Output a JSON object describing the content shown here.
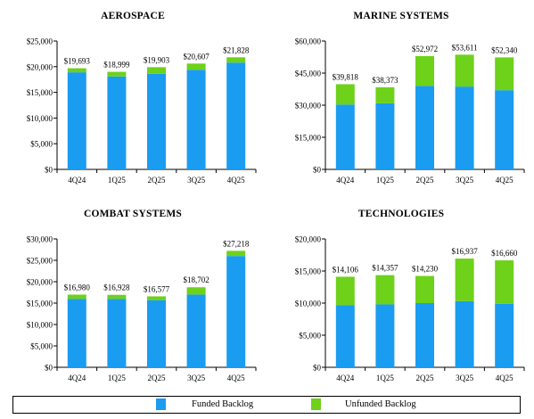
{
  "colors": {
    "funded": "#1a9cf0",
    "unfunded": "#6ed11a",
    "axis": "#000000"
  },
  "legend": {
    "funded_label": "Funded Backlog",
    "unfunded_label": "Unfunded Backlog"
  },
  "chart_data": [
    {
      "type": "bar",
      "stacked": true,
      "title": "AEROSPACE",
      "categories": [
        "4Q24",
        "1Q25",
        "2Q25",
        "3Q25",
        "4Q25"
      ],
      "ylim": [
        0,
        25000
      ],
      "yticks": [
        "$0",
        "$5,000",
        "$10,000",
        "$15,000",
        "$20,000",
        "$25,000"
      ],
      "ytick_values": [
        0,
        5000,
        10000,
        15000,
        20000,
        25000
      ],
      "series": [
        {
          "name": "Funded Backlog",
          "values": [
            18900,
            18100,
            18600,
            19400,
            20800
          ]
        },
        {
          "name": "Unfunded Backlog",
          "values": [
            793,
            899,
            1303,
            1207,
            1028
          ]
        }
      ],
      "totals": [
        19693,
        18999,
        19903,
        20607,
        21828
      ],
      "total_labels": [
        "$19,693",
        "$18,999",
        "$19,903",
        "$20,607",
        "$21,828"
      ]
    },
    {
      "type": "bar",
      "stacked": true,
      "title": "MARINE SYSTEMS",
      "categories": [
        "4Q24",
        "1Q25",
        "2Q25",
        "3Q25",
        "4Q25"
      ],
      "ylim": [
        0,
        60000
      ],
      "yticks": [
        "$0",
        "$15,000",
        "$30,000",
        "$45,000",
        "$60,000"
      ],
      "ytick_values": [
        0,
        15000,
        30000,
        45000,
        60000
      ],
      "series": [
        {
          "name": "Funded Backlog",
          "values": [
            30300,
            30900,
            39000,
            38700,
            37000
          ]
        },
        {
          "name": "Unfunded Backlog",
          "values": [
            9518,
            7473,
            13972,
            14911,
            15340
          ]
        }
      ],
      "totals": [
        39818,
        38373,
        52972,
        53611,
        52340
      ],
      "total_labels": [
        "$39,818",
        "$38,373",
        "$52,972",
        "$53,611",
        "$52,340"
      ]
    },
    {
      "type": "bar",
      "stacked": true,
      "title": "COMBAT SYSTEMS",
      "categories": [
        "4Q24",
        "1Q25",
        "2Q25",
        "3Q25",
        "4Q25"
      ],
      "ylim": [
        0,
        30000
      ],
      "yticks": [
        "$0",
        "$5,000",
        "$10,000",
        "$15,000",
        "$20,000",
        "$25,000",
        "$30,000"
      ],
      "ytick_values": [
        0,
        5000,
        10000,
        15000,
        20000,
        25000,
        30000
      ],
      "series": [
        {
          "name": "Funded Backlog",
          "values": [
            16000,
            16000,
            15700,
            17000,
            26000
          ]
        },
        {
          "name": "Unfunded Backlog",
          "values": [
            980,
            928,
            877,
            1702,
            1218
          ]
        }
      ],
      "totals": [
        16980,
        16928,
        16577,
        18702,
        27218
      ],
      "total_labels": [
        "$16,980",
        "$16,928",
        "$16,577",
        "$18,702",
        "$27,218"
      ]
    },
    {
      "type": "bar",
      "stacked": true,
      "title": "TECHNOLOGIES",
      "categories": [
        "4Q24",
        "1Q25",
        "2Q25",
        "3Q25",
        "4Q25"
      ],
      "ylim": [
        0,
        20000
      ],
      "yticks": [
        "$0",
        "$5,000",
        "$10,000",
        "$15,000",
        "$20,000"
      ],
      "ytick_values": [
        0,
        5000,
        10000,
        15000,
        20000
      ],
      "series": [
        {
          "name": "Funded Backlog",
          "values": [
            9700,
            9800,
            10000,
            10300,
            9900
          ]
        },
        {
          "name": "Unfunded Backlog",
          "values": [
            4406,
            4557,
            4230,
            6637,
            6760
          ]
        }
      ],
      "totals": [
        14106,
        14357,
        14230,
        16937,
        16660
      ],
      "total_labels": [
        "$14,106",
        "$14,357",
        "$14,230",
        "$16,937",
        "$16,660"
      ]
    }
  ]
}
